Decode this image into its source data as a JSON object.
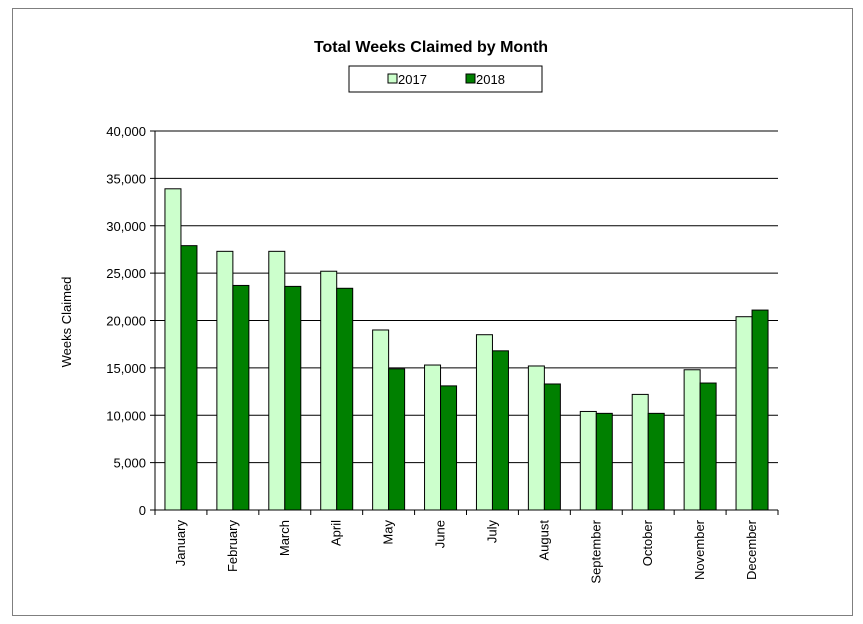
{
  "chart_data": {
    "type": "bar",
    "title": "Total Weeks Claimed by Month",
    "xlabel": "",
    "ylabel": "Weeks Claimed",
    "ylim": [
      0,
      40000
    ],
    "yticks": [
      "0",
      "5,000",
      "10,000",
      "15,000",
      "20,000",
      "25,000",
      "30,000",
      "35,000",
      "40,000"
    ],
    "grid": true,
    "legend_position": "top",
    "categories": [
      "January",
      "February",
      "March",
      "April",
      "May",
      "June",
      "July",
      "August",
      "September",
      "October",
      "November",
      "December"
    ],
    "series": [
      {
        "name": "2017",
        "color": "#ccffcc",
        "values": [
          33900,
          27300,
          27300,
          25200,
          19000,
          15300,
          18500,
          15200,
          10400,
          12200,
          14800,
          20400
        ]
      },
      {
        "name": "2018",
        "color": "#008000",
        "values": [
          27900,
          23700,
          23600,
          23400,
          14900,
          13100,
          16800,
          13300,
          10200,
          10200,
          13400,
          21100
        ]
      }
    ]
  }
}
